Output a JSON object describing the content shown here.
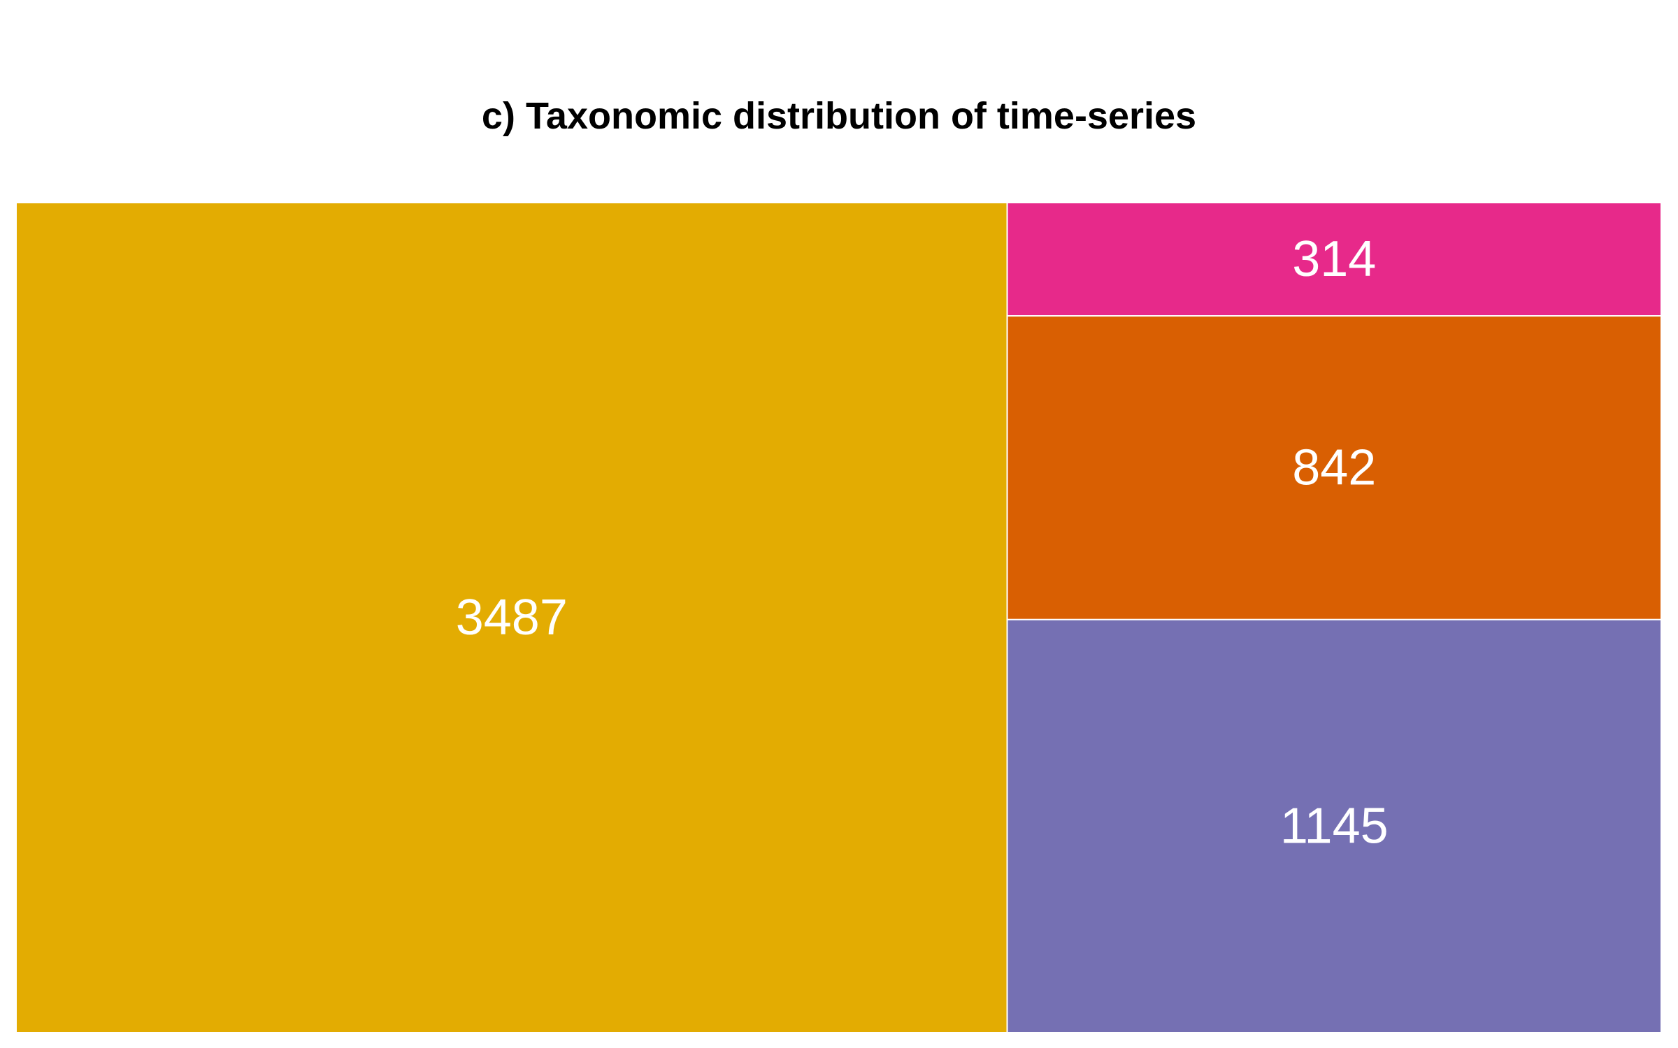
{
  "chart_data": {
    "type": "treemap",
    "title": "c) Taxonomic distribution of time-series",
    "items": [
      {
        "value": 3487,
        "label": "3487",
        "color": "#E3AC02"
      },
      {
        "value": 314,
        "label": "314",
        "color": "#E7298A"
      },
      {
        "value": 842,
        "label": "842",
        "color": "#D95F02"
      },
      {
        "value": 1145,
        "label": "1145",
        "color": "#7570B3"
      }
    ],
    "border_color": "#FFFFFF"
  }
}
